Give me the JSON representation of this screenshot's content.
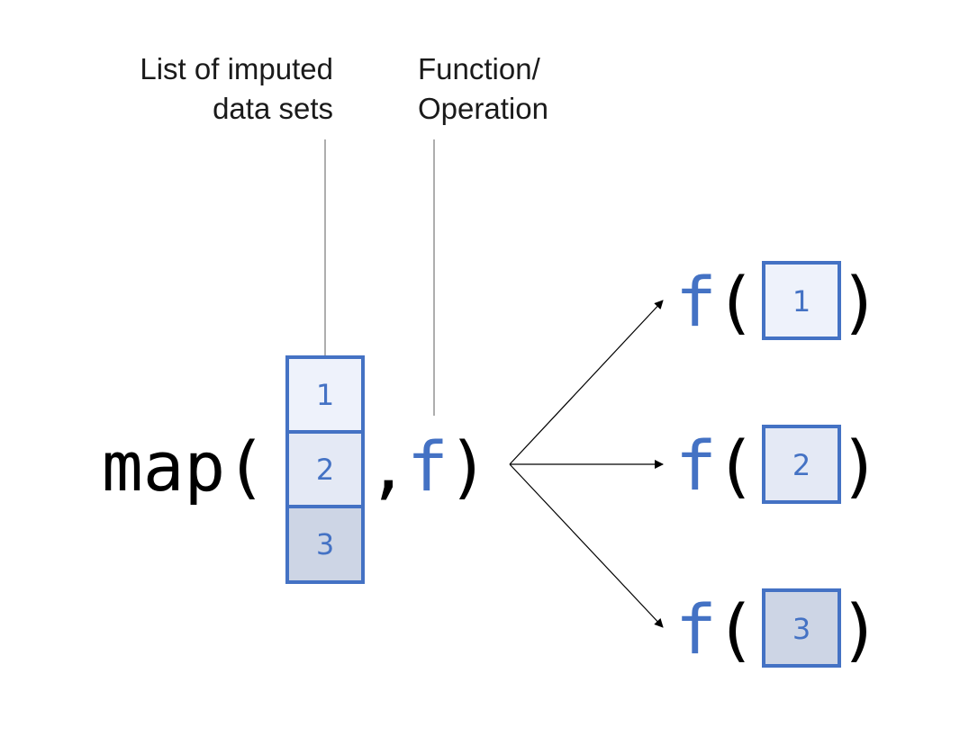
{
  "labels": {
    "list_line1": "List of imputed",
    "list_line2": "data sets",
    "func_line1": "Function/",
    "func_line2": "Operation"
  },
  "expression": {
    "map_open": "map(",
    "comma": ",",
    "func": "f",
    "close": ")"
  },
  "datasets": [
    {
      "label": "1",
      "color": "#EEF2FB"
    },
    {
      "label": "2",
      "color": "#E4E9F5"
    },
    {
      "label": "3",
      "color": "#CDD5E5"
    }
  ],
  "outputs": [
    {
      "func": "f",
      "open": "(",
      "box": "1",
      "close": ")",
      "color": "#EEF2FB"
    },
    {
      "func": "f",
      "open": "(",
      "box": "2",
      "close": ")",
      "color": "#E4E9F5"
    },
    {
      "func": "f",
      "open": "(",
      "box": "3",
      "close": ")",
      "color": "#CDD5E5"
    }
  ],
  "colors": {
    "accent": "#4472C4"
  }
}
